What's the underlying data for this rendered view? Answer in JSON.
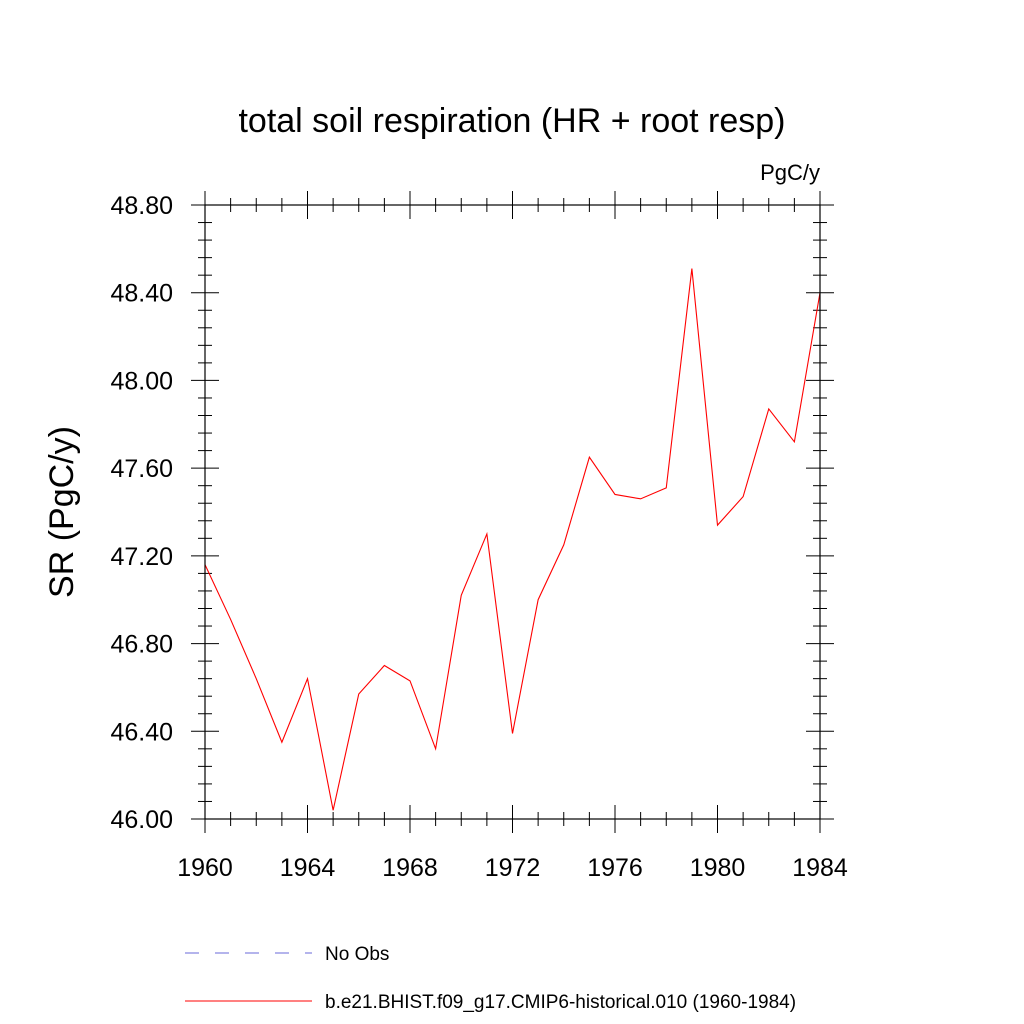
{
  "chart_data": {
    "type": "line",
    "title": "total soil respiration (HR + root resp)",
    "units_label": "PgC/y",
    "ylabel": "SR  (PgC/y)",
    "xlabel": "",
    "xlim": [
      1960,
      1984
    ],
    "ylim": [
      46.0,
      48.8
    ],
    "x_ticks": [
      1960,
      1964,
      1968,
      1972,
      1976,
      1980,
      1984
    ],
    "x_tick_labels": [
      "1960",
      "1964",
      "1968",
      "1972",
      "1976",
      "1980",
      "1984"
    ],
    "y_ticks": [
      46.0,
      46.4,
      46.8,
      47.2,
      47.6,
      48.0,
      48.4,
      48.8
    ],
    "y_tick_labels": [
      "46.00",
      "46.40",
      "46.80",
      "47.20",
      "47.60",
      "48.00",
      "48.40",
      "48.80"
    ],
    "grid": false,
    "legend_position": "bottom",
    "series": [
      {
        "name": "b.e21.BHIST.f09_g17.CMIP6-historical.010 (1960-1984)",
        "color": "#ff0000",
        "style": "solid",
        "x": [
          1960,
          1961,
          1962,
          1963,
          1964,
          1965,
          1966,
          1967,
          1968,
          1969,
          1970,
          1971,
          1972,
          1973,
          1974,
          1975,
          1976,
          1977,
          1978,
          1979,
          1980,
          1981,
          1982,
          1983,
          1984
        ],
        "y": [
          47.16,
          46.91,
          46.64,
          46.35,
          46.64,
          46.04,
          46.57,
          46.7,
          46.63,
          46.32,
          47.02,
          47.3,
          46.39,
          47.0,
          47.25,
          47.65,
          47.48,
          47.46,
          47.51,
          48.51,
          47.34,
          47.47,
          47.87,
          47.72,
          48.4
        ]
      }
    ],
    "legend": [
      {
        "label": "No Obs",
        "color": "#6a6ad8",
        "style": "dashed"
      },
      {
        "label": "b.e21.BHIST.f09_g17.CMIP6-historical.010 (1960-1984)",
        "color": "#ff0000",
        "style": "solid"
      }
    ]
  }
}
